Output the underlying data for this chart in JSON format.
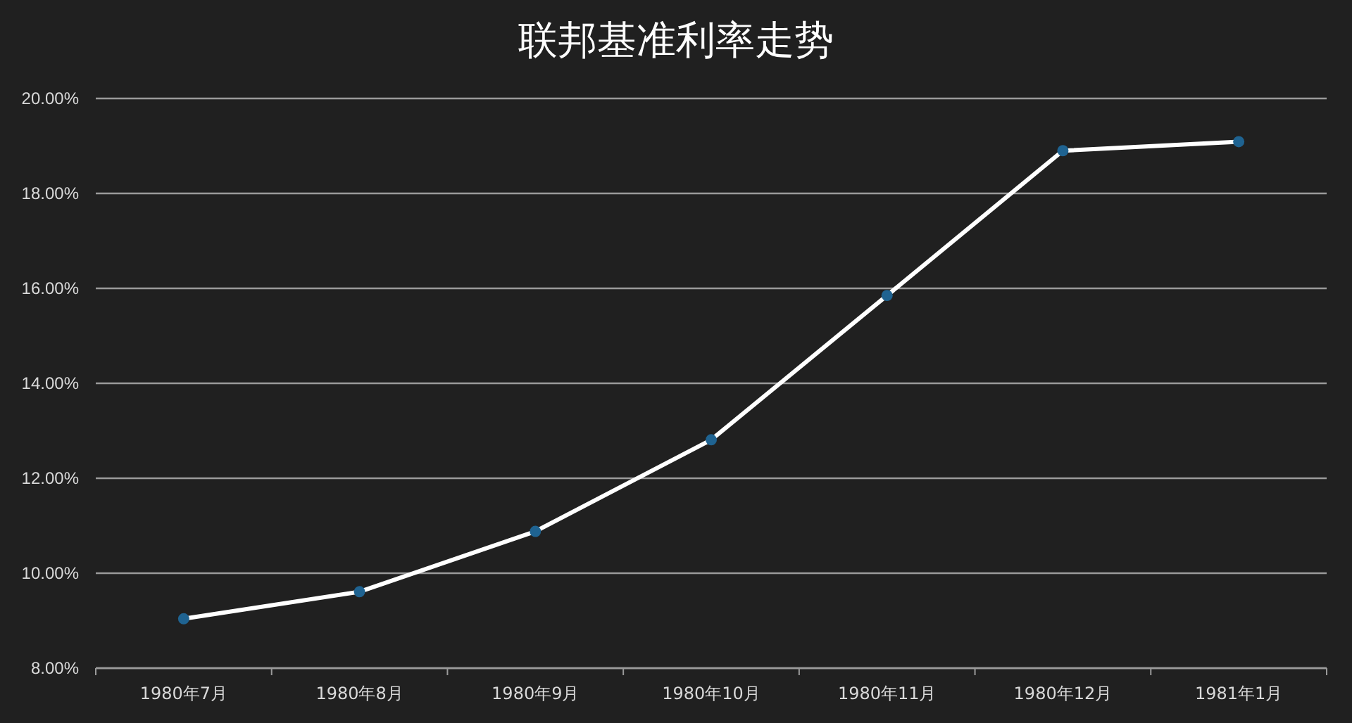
{
  "chart_data": {
    "type": "line",
    "title": "联邦基准利率走势",
    "categories": [
      "1980年7月",
      "1980年8月",
      "1980年9月",
      "1980年10月",
      "1980年11月",
      "1980年12月",
      "1981年1月"
    ],
    "series": [
      {
        "color": "#ffffff",
        "values": [
          9.04,
          9.61,
          10.88,
          12.81,
          15.85,
          18.9,
          19.09
        ]
      }
    ],
    "ylim": [
      8,
      20
    ],
    "yticks": [
      {
        "value": 8,
        "label": "8.00%"
      },
      {
        "value": 10,
        "label": "10.00%"
      },
      {
        "value": 12,
        "label": "12.00%"
      },
      {
        "value": 14,
        "label": "14.00%"
      },
      {
        "value": 16,
        "label": "16.00%"
      },
      {
        "value": 18,
        "label": "18.00%"
      },
      {
        "value": 20,
        "label": "20.00%"
      }
    ],
    "grid": "y",
    "marker": "circle",
    "line_style": "solid"
  }
}
